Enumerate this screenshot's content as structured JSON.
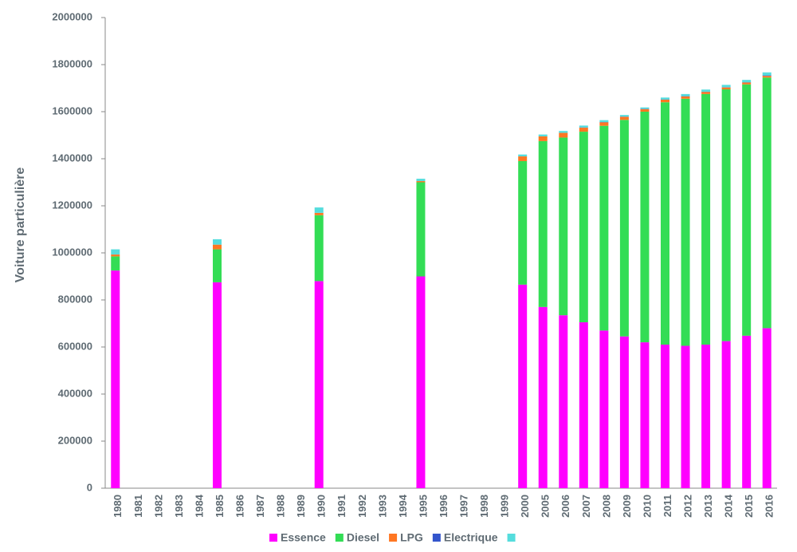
{
  "chart_data": {
    "type": "stacked_bar",
    "y_label": "Voiture particulière",
    "categories": [
      "1980",
      "1981",
      "1982",
      "1983",
      "1984",
      "1985",
      "1986",
      "1987",
      "1988",
      "1989",
      "1990",
      "1991",
      "1992",
      "1993",
      "1994",
      "1995",
      "1996",
      "1997",
      "1998",
      "1999",
      "2000",
      "2005",
      "2006",
      "2007",
      "2008",
      "2009",
      "2010",
      "2011",
      "2012",
      "2013",
      "2014",
      "2015",
      "2016"
    ],
    "series": [
      {
        "name": "Essence",
        "color": "#ff00ff",
        "values": [
          925000,
          null,
          null,
          null,
          null,
          875000,
          null,
          null,
          null,
          null,
          880000,
          null,
          null,
          null,
          null,
          900000,
          null,
          null,
          null,
          null,
          865000,
          770000,
          735000,
          705000,
          670000,
          645000,
          620000,
          610000,
          605000,
          610000,
          625000,
          648000,
          680000
        ]
      },
      {
        "name": "Diesel",
        "color": "#33dd55",
        "values": [
          60000,
          null,
          null,
          null,
          null,
          140000,
          null,
          null,
          null,
          null,
          280000,
          null,
          null,
          null,
          null,
          400000,
          null,
          null,
          null,
          null,
          525000,
          705000,
          755000,
          810000,
          870000,
          920000,
          980000,
          1030000,
          1050000,
          1065000,
          1070000,
          1068000,
          1065000
        ]
      },
      {
        "name": "LPG",
        "color": "#ff7722",
        "values": [
          8000,
          null,
          null,
          null,
          null,
          20000,
          null,
          null,
          null,
          null,
          10000,
          null,
          null,
          null,
          null,
          5000,
          null,
          null,
          null,
          null,
          20000,
          20000,
          20000,
          17000,
          15000,
          13000,
          11000,
          11000,
          10000,
          9000,
          8000,
          8000,
          7000
        ]
      },
      {
        "name": "Electrique",
        "color": "#3355cc",
        "values": [
          0,
          null,
          null,
          null,
          null,
          0,
          null,
          null,
          null,
          null,
          0,
          null,
          null,
          null,
          null,
          0,
          null,
          null,
          null,
          null,
          0,
          0,
          0,
          1000,
          1000,
          1000,
          1000,
          1000,
          1000,
          1000,
          1000,
          1000,
          2000
        ]
      },
      {
        "color": "#55dddd",
        "values": [
          22000,
          null,
          null,
          null,
          null,
          23000,
          null,
          null,
          null,
          null,
          23000,
          null,
          null,
          null,
          null,
          10000,
          null,
          null,
          null,
          null,
          8000,
          8000,
          8000,
          8000,
          8000,
          7000,
          6000,
          8000,
          9000,
          9000,
          10000,
          10000,
          13000
        ]
      }
    ],
    "ylim": [
      0,
      2000000
    ],
    "yticks": [
      0,
      200000,
      400000,
      600000,
      800000,
      1000000,
      1200000,
      1400000,
      1600000,
      1800000,
      2000000
    ],
    "grid": false
  }
}
